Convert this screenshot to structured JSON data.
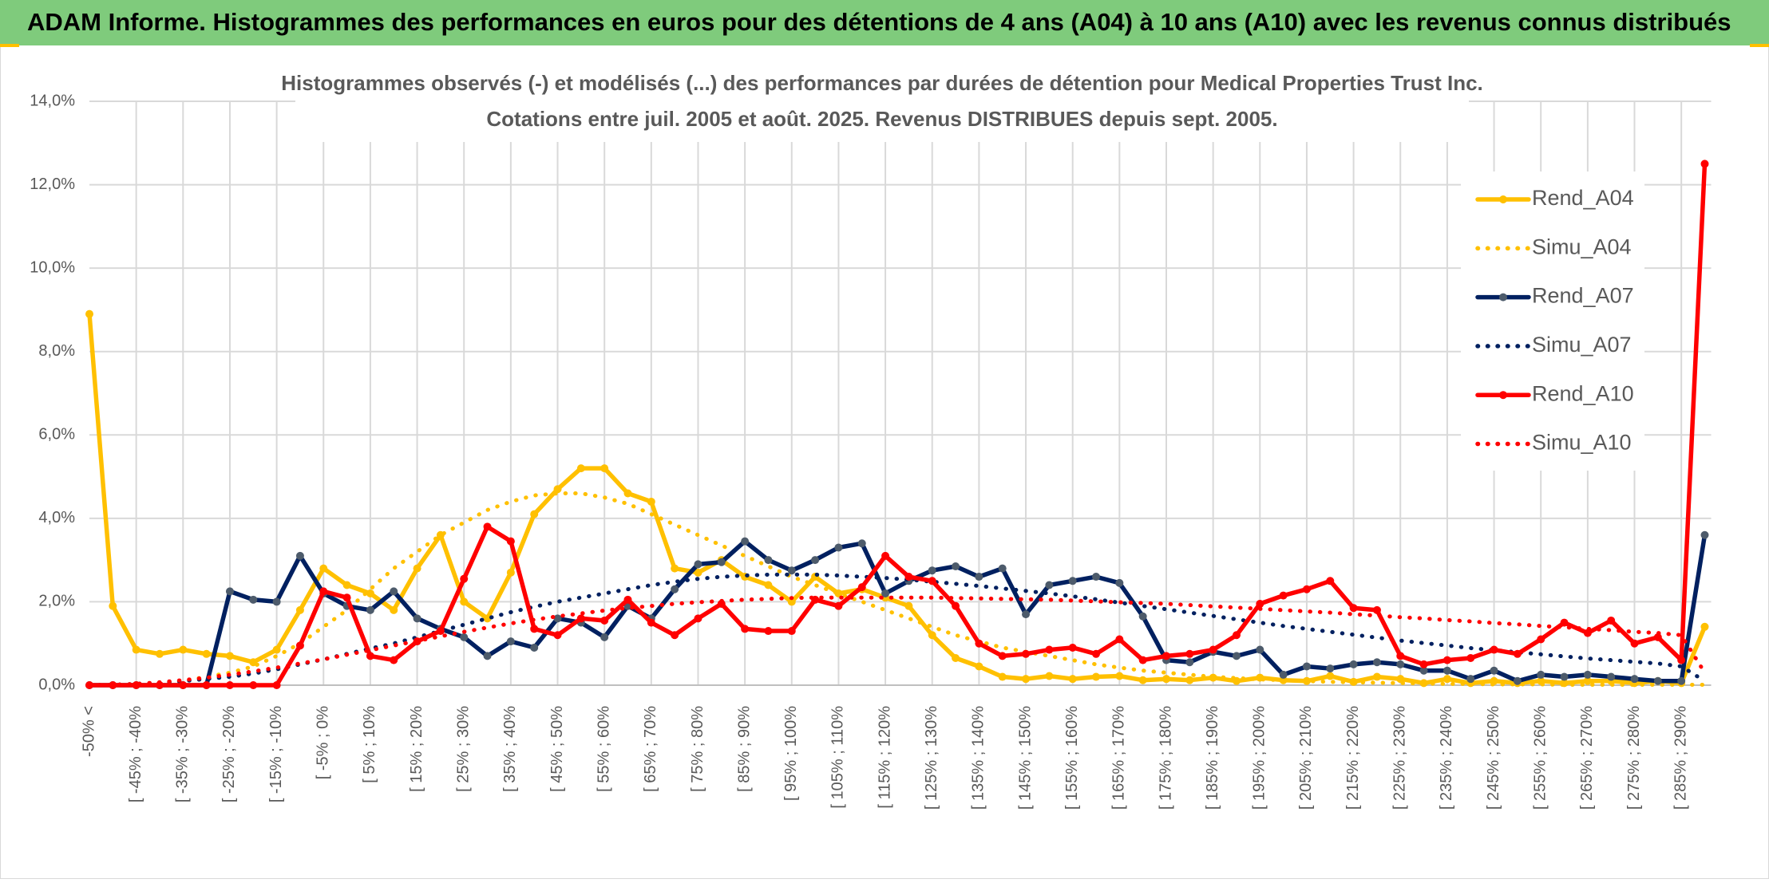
{
  "header": {
    "title": "ADAM Informe. Histogrammes des performances en euros pour des détentions de 4 ans (A04) à 10 ans (A10) avec les revenus connus distribués"
  },
  "chart_data": {
    "type": "line",
    "title": "Histogrammes observés (-) et modélisés (...) des performances par durées de détention pour Medical Properties Trust Inc.",
    "subtitle": "Cotations entre juil. 2005 et août. 2025. Revenus DISTRIBUES depuis sept. 2005.",
    "categories": [
      "-50% <",
      null,
      "[ -45% ; -40%",
      null,
      "[ -35% ; -30%",
      null,
      "[ -25% ; -20%",
      null,
      "[ -15% ; -10%",
      null,
      "[ -5% ; 0%",
      null,
      "[ 5% ; 10%",
      null,
      "[ 15% ; 20%",
      null,
      "[ 25% ; 30%",
      null,
      "[ 35% ; 40%",
      null,
      "[ 45% ; 50%",
      null,
      "[ 55% ; 60%",
      null,
      "[ 65% ; 70%",
      null,
      "[ 75% ; 80%",
      null,
      "[ 85% ; 90%",
      null,
      "[ 95% ; 100%",
      null,
      "[ 105% ; 110%",
      null,
      "[ 115% ; 120%",
      null,
      "[ 125% ; 130%",
      null,
      "[ 135% ; 140%",
      null,
      "[ 145% ; 150%",
      null,
      "[ 155% ; 160%",
      null,
      "[ 165% ; 170%",
      null,
      "[ 175% ; 180%",
      null,
      "[ 185% ; 190%",
      null,
      "[ 195% ; 200%",
      null,
      "[ 205% ; 210%",
      null,
      "[ 215% ; 220%",
      null,
      "[ 225% ; 230%",
      null,
      "[ 235% ; 240%",
      null,
      "[ 245% ; 250%",
      null,
      "[ 255% ; 260%",
      null,
      "[ 265% ; 270%",
      null,
      "[ 275% ; 280%",
      null,
      "[ 285% ; 290%",
      null
    ],
    "ylim": [
      0,
      14
    ],
    "yticks": [
      {
        "value": 0,
        "label": "0,0%"
      },
      {
        "value": 2,
        "label": "2,0%"
      },
      {
        "value": 4,
        "label": "4,0%"
      },
      {
        "value": 6,
        "label": "6,0%"
      },
      {
        "value": 8,
        "label": "8,0%"
      },
      {
        "value": 10,
        "label": "10,0%"
      },
      {
        "value": 12,
        "label": "12,0%"
      },
      {
        "value": 14,
        "label": "14,0%"
      }
    ],
    "grid": true,
    "legend": "right",
    "series": [
      {
        "name": "Rend_A04",
        "color": "#ffc000",
        "style": "solid",
        "markers": true,
        "values": [
          8.9,
          1.9,
          0.85,
          0.75,
          0.85,
          0.75,
          0.7,
          0.55,
          0.85,
          1.8,
          2.8,
          2.4,
          2.2,
          1.8,
          2.8,
          3.6,
          2.0,
          1.6,
          2.7,
          4.1,
          4.7,
          5.2,
          5.2,
          4.6,
          4.4,
          2.8,
          2.7,
          3.0,
          2.6,
          2.4,
          2.0,
          2.6,
          2.2,
          2.3,
          2.1,
          1.9,
          1.2,
          0.65,
          0.45,
          0.2,
          0.15,
          0.22,
          0.15,
          0.2,
          0.22,
          0.12,
          0.15,
          0.12,
          0.18,
          0.1,
          0.18,
          0.12,
          0.1,
          0.22,
          0.08,
          0.2,
          0.15,
          0.05,
          0.15,
          0.05,
          0.1,
          0.05,
          0.1,
          0.05,
          0.1,
          0.1,
          0.05,
          0.1,
          0.05,
          1.4
        ]
      },
      {
        "name": "Simu_A04",
        "color": "#ffc000",
        "style": "dotted",
        "markers": false,
        "values": [
          0,
          0,
          0.02,
          0.05,
          0.1,
          0.2,
          0.3,
          0.45,
          0.7,
          1.0,
          1.4,
          1.8,
          2.3,
          2.8,
          3.2,
          3.6,
          3.9,
          4.2,
          4.4,
          4.55,
          4.6,
          4.6,
          4.5,
          4.35,
          4.1,
          3.85,
          3.6,
          3.35,
          3.1,
          2.85,
          2.6,
          2.4,
          2.2,
          2.0,
          1.8,
          1.6,
          1.4,
          1.2,
          1.05,
          0.9,
          0.8,
          0.7,
          0.6,
          0.5,
          0.42,
          0.35,
          0.3,
          0.25,
          0.2,
          0.17,
          0.14,
          0.12,
          0.1,
          0.08,
          0.07,
          0.06,
          0.05,
          0.04,
          0.03,
          0.03,
          0.02,
          0.02,
          0.02,
          0.01,
          0.01,
          0.01,
          0.01,
          0.01,
          0.01,
          0.01
        ]
      },
      {
        "name": "Rend_A07",
        "color": "#002060",
        "marker_color": "#4d5b6b",
        "style": "solid",
        "markers": true,
        "values": [
          0,
          0,
          0,
          0,
          0,
          0,
          2.25,
          2.05,
          2.0,
          3.1,
          2.2,
          1.9,
          1.8,
          2.25,
          1.6,
          1.35,
          1.15,
          0.7,
          1.05,
          0.9,
          1.6,
          1.5,
          1.15,
          1.9,
          1.6,
          2.3,
          2.9,
          2.95,
          3.45,
          3.0,
          2.75,
          3.0,
          3.3,
          3.4,
          2.2,
          2.5,
          2.75,
          2.85,
          2.6,
          2.8,
          1.7,
          2.4,
          2.5,
          2.6,
          2.45,
          1.65,
          0.6,
          0.55,
          0.8,
          0.7,
          0.85,
          0.25,
          0.45,
          0.4,
          0.5,
          0.55,
          0.5,
          0.35,
          0.35,
          0.15,
          0.35,
          0.1,
          0.25,
          0.2,
          0.25,
          0.2,
          0.15,
          0.1,
          0.1,
          3.6
        ]
      },
      {
        "name": "Simu_A07",
        "color": "#002060",
        "style": "dotted",
        "markers": false,
        "values": [
          0,
          0.01,
          0.03,
          0.06,
          0.1,
          0.15,
          0.2,
          0.28,
          0.38,
          0.5,
          0.62,
          0.75,
          0.88,
          1.0,
          1.15,
          1.3,
          1.45,
          1.6,
          1.75,
          1.88,
          2.0,
          2.1,
          2.2,
          2.3,
          2.4,
          2.48,
          2.55,
          2.6,
          2.63,
          2.65,
          2.65,
          2.65,
          2.63,
          2.6,
          2.57,
          2.53,
          2.48,
          2.43,
          2.38,
          2.32,
          2.26,
          2.2,
          2.13,
          2.06,
          1.98,
          1.9,
          1.82,
          1.74,
          1.66,
          1.58,
          1.5,
          1.42,
          1.35,
          1.28,
          1.21,
          1.14,
          1.07,
          1.01,
          0.95,
          0.89,
          0.84,
          0.79,
          0.74,
          0.69,
          0.64,
          0.6,
          0.56,
          0.52,
          0.45,
          0.1
        ]
      },
      {
        "name": "Rend_A10",
        "color": "#ff0000",
        "style": "solid",
        "markers": true,
        "values": [
          0,
          0,
          0,
          0,
          0,
          0,
          0,
          0,
          0,
          0.95,
          2.25,
          2.1,
          0.7,
          0.6,
          1.05,
          1.3,
          2.55,
          3.8,
          3.45,
          1.35,
          1.2,
          1.6,
          1.55,
          2.05,
          1.5,
          1.2,
          1.6,
          1.95,
          1.35,
          1.3,
          1.3,
          2.05,
          1.9,
          2.35,
          3.1,
          2.6,
          2.5,
          1.9,
          1.0,
          0.7,
          0.75,
          0.85,
          0.9,
          0.75,
          1.1,
          0.6,
          0.7,
          0.75,
          0.85,
          1.2,
          1.95,
          2.15,
          2.3,
          2.5,
          1.85,
          1.8,
          0.7,
          0.5,
          0.6,
          0.65,
          0.85,
          0.75,
          1.1,
          1.5,
          1.25,
          1.55,
          1.0,
          1.15,
          0.6,
          12.5
        ]
      },
      {
        "name": "Simu_A10",
        "color": "#ff0000",
        "style": "dotted",
        "markers": false,
        "values": [
          0,
          0.01,
          0.03,
          0.07,
          0.12,
          0.18,
          0.25,
          0.33,
          0.42,
          0.52,
          0.62,
          0.73,
          0.84,
          0.95,
          1.06,
          1.17,
          1.28,
          1.38,
          1.48,
          1.57,
          1.65,
          1.72,
          1.79,
          1.85,
          1.9,
          1.95,
          1.99,
          2.02,
          2.05,
          2.07,
          2.09,
          2.1,
          2.1,
          2.1,
          2.1,
          2.1,
          2.1,
          2.09,
          2.08,
          2.07,
          2.06,
          2.05,
          2.03,
          2.01,
          1.99,
          1.97,
          1.95,
          1.92,
          1.89,
          1.86,
          1.83,
          1.8,
          1.77,
          1.74,
          1.7,
          1.67,
          1.63,
          1.6,
          1.56,
          1.53,
          1.49,
          1.46,
          1.42,
          1.39,
          1.35,
          1.32,
          1.28,
          1.25,
          1.2,
          0.3
        ]
      }
    ]
  }
}
